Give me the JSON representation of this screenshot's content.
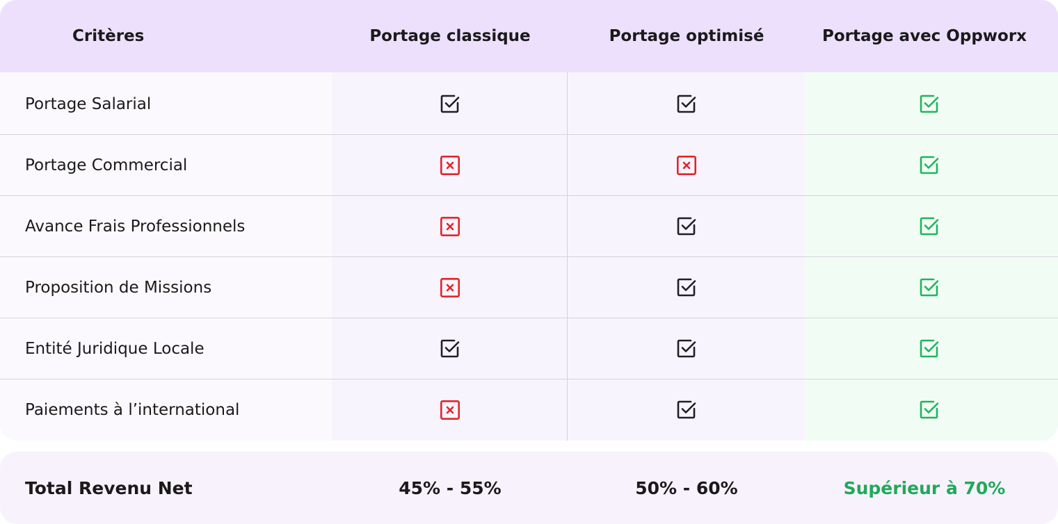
{
  "colors": {
    "header_bg": "#ede0fd",
    "check_dark": "#1f1f24",
    "check_green": "#21b45e",
    "cross_red": "#e0262b",
    "highlight_text": "#21a95a"
  },
  "table": {
    "headers": [
      "Critères",
      "Portage classique",
      "Portage optimisé",
      "Portage avec Oppworx"
    ],
    "rows": [
      {
        "label": "Portage Salarial",
        "values": [
          "check",
          "check",
          "check"
        ]
      },
      {
        "label": "Portage Commercial",
        "values": [
          "cross",
          "cross",
          "check"
        ]
      },
      {
        "label": "Avance Frais Professionnels",
        "values": [
          "cross",
          "check",
          "check"
        ]
      },
      {
        "label": "Proposition de Missions",
        "values": [
          "cross",
          "check",
          "check"
        ]
      },
      {
        "label": "Entité Juridique Locale",
        "values": [
          "check",
          "check",
          "check"
        ]
      },
      {
        "label": "Paiements à l’international",
        "values": [
          "cross",
          "check",
          "check"
        ]
      }
    ]
  },
  "footer": {
    "label": "Total Revenu Net",
    "values": [
      "45% - 55%",
      "50% - 60%",
      "Supérieur à 70%"
    ]
  }
}
